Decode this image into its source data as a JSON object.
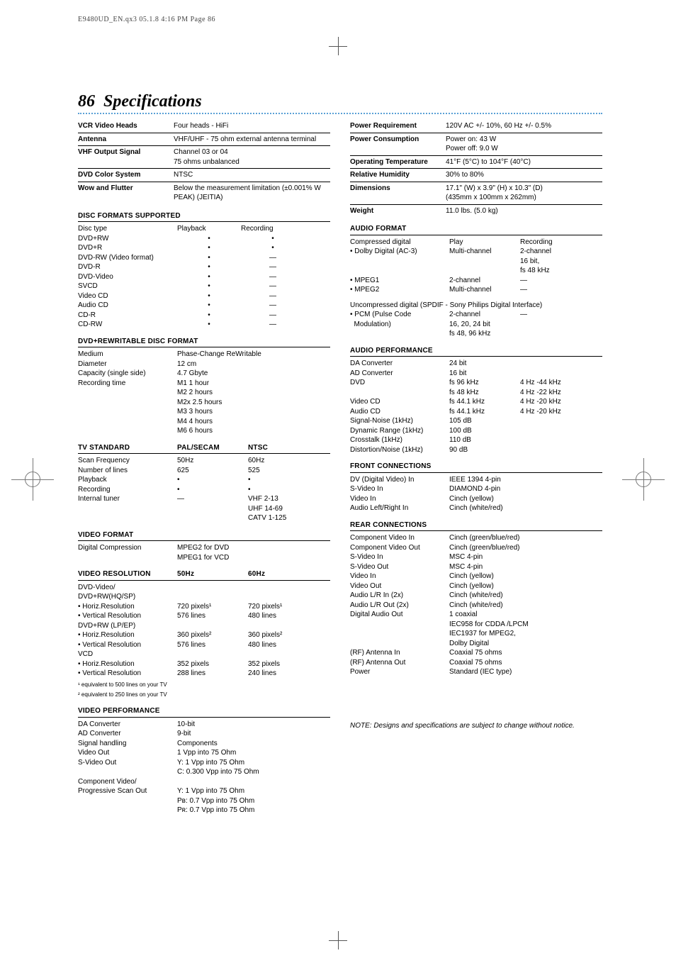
{
  "header_text": "E9480UD_EN.qx3  05.1.8  4:16 PM  Page 86",
  "page_number": "86",
  "page_title": "Specifications",
  "general": [
    {
      "k": "VCR Video Heads",
      "v": "Four heads - HiFi"
    },
    {
      "k": "Antenna",
      "v": "VHF/UHF - 75 ohm external antenna terminal"
    },
    {
      "k": "VHF Output Signal",
      "v": "Channel 03 or 04\n75 ohms unbalanced"
    },
    {
      "k": "DVD Color System",
      "v": "NTSC"
    },
    {
      "k": "Wow and Flutter",
      "v": "Below the measurement limitation (±0.001% W PEAK) (JEITIA)"
    }
  ],
  "right_general": [
    {
      "k": "Power Requirement",
      "v": "120V AC +/- 10%, 60 Hz +/- 0.5%"
    },
    {
      "k": "Power Consumption",
      "v": "Power on: 43 W\nPower off: 9.0 W"
    },
    {
      "k": "Operating Temperature",
      "v": "41°F (5°C) to 104°F (40°C)"
    },
    {
      "k": "Relative Humidity",
      "v": "30% to 80%"
    },
    {
      "k": "Dimensions",
      "v": "17.1\" (W) x 3.9\" (H) x 10.3\" (D)\n(435mm x 100mm x 262mm)"
    },
    {
      "k": "Weight",
      "v": "11.0 lbs. (5.0 kg)"
    }
  ],
  "disc_formats_head": "DISC FORMATS SUPPORTED",
  "disc_cols": [
    "Disc type",
    "Playback",
    "Recording"
  ],
  "disc_rows": [
    [
      "DVD+RW",
      "•",
      "•"
    ],
    [
      "DVD+R",
      "•",
      "•"
    ],
    [
      "DVD-RW (Video format)",
      "•",
      "—"
    ],
    [
      "DVD-R",
      "•",
      "—"
    ],
    [
      "DVD-Video",
      "•",
      "—"
    ],
    [
      "SVCD",
      "•",
      "—"
    ],
    [
      "Video CD",
      "•",
      "—"
    ],
    [
      "Audio CD",
      "•",
      "—"
    ],
    [
      "CD-R",
      "•",
      "—"
    ],
    [
      "CD-RW",
      "•",
      "—"
    ]
  ],
  "rw_head": "DVD+REWRITABLE DISC FORMAT",
  "rw": [
    [
      "Medium",
      "Phase-Change ReWritable"
    ],
    [
      "Diameter",
      "12 cm"
    ],
    [
      "Capacity (single side)",
      "4.7 Gbyte"
    ],
    [
      "Recording time",
      "M1      1 hour"
    ],
    [
      "",
      "M2      2 hours"
    ],
    [
      "",
      "M2x    2.5 hours"
    ],
    [
      "",
      "M3      3 hours"
    ],
    [
      "",
      "M4      4 hours"
    ],
    [
      "",
      "M6      6 hours"
    ]
  ],
  "tv_head": "TV STANDARD",
  "tv_cols": [
    "",
    "PAL/SECAM",
    "NTSC"
  ],
  "tv_rows": [
    [
      "Scan Frequency",
      "50Hz",
      "60Hz"
    ],
    [
      "Number of lines",
      "625",
      "525"
    ],
    [
      "Playback",
      "•",
      "•"
    ],
    [
      "Recording",
      "•",
      "•"
    ],
    [
      "Internal tuner",
      "—",
      "VHF   2-13"
    ],
    [
      "",
      "",
      "UHF   14-69"
    ],
    [
      "",
      "",
      "CATV 1-125"
    ]
  ],
  "vf_head": "VIDEO FORMAT",
  "vf": [
    [
      "Digital Compression",
      "MPEG2 for DVD\nMPEG1 for VCD"
    ]
  ],
  "vr_head": "VIDEO RESOLUTION",
  "vr_cols": [
    "",
    "50Hz",
    "60Hz"
  ],
  "vr_rows": [
    [
      "DVD-Video/",
      "",
      ""
    ],
    [
      "DVD+RW(HQ/SP)",
      "",
      ""
    ],
    [
      "• Horiz.Resolution",
      "720 pixels¹",
      "720 pixels¹"
    ],
    [
      "• Vertical Resolution",
      "576 lines",
      "480 lines"
    ],
    [
      "DVD+RW (LP/EP)",
      "",
      ""
    ],
    [
      "• Horiz.Resolution",
      "360 pixels²",
      "360 pixels²"
    ],
    [
      "• Vertical Resolution",
      "576 lines",
      "480 lines"
    ],
    [
      "VCD",
      "",
      ""
    ],
    [
      "• Horiz.Resolution",
      "352 pixels",
      "352 pixels"
    ],
    [
      "• Vertical Resolution",
      "288 lines",
      "240 lines"
    ]
  ],
  "vr_foot1": "¹ equivalent to 500 lines on your TV",
  "vr_foot2": "² equivalent to 250 lines on your TV",
  "vp_head": "VIDEO PERFORMANCE",
  "vp": [
    [
      "DA Converter",
      "10-bit"
    ],
    [
      "AD Converter",
      "9-bit"
    ],
    [
      "Signal handling",
      "Components"
    ],
    [
      "Video Out",
      "1 Vpp into 75 Ohm"
    ],
    [
      "S-Video Out",
      "Y: 1 Vpp into 75 Ohm"
    ],
    [
      "",
      "C: 0.300 Vpp into 75 Ohm"
    ],
    [
      "Component Video/",
      ""
    ],
    [
      "Progressive Scan Out",
      "Y: 1 Vpp into 75 Ohm"
    ],
    [
      "",
      "Pʙ: 0.7 Vpp into 75 Ohm"
    ],
    [
      "",
      "Pʀ: 0.7 Vpp into 75 Ohm"
    ]
  ],
  "af_head": "AUDIO FORMAT",
  "af_c1": "Compressed digital",
  "af_play": "Play",
  "af_rec": "Recording",
  "af_rows": [
    [
      "• Dolby Digital (AC-3)",
      "Multi-channel",
      "2-channel\n16 bit,\nfs 48 kHz"
    ],
    [
      "• MPEG1",
      "2-channel",
      "—"
    ],
    [
      "• MPEG2",
      "Multi-channel",
      "—"
    ]
  ],
  "af_unc": "Uncompressed digital (SPDIF - Sony Philips Digital Interface)",
  "af_pcm": [
    "• PCM (Pulse Code\n  Modulation)",
    "2-channel\n16, 20, 24 bit\nfs 48, 96 kHz",
    "—"
  ],
  "ap_head": "AUDIO PERFORMANCE",
  "ap": [
    [
      "DA Converter",
      "24 bit",
      ""
    ],
    [
      "AD Converter",
      "16 bit",
      ""
    ],
    [
      "DVD",
      "fs 96 kHz",
      "4 Hz -44 kHz"
    ],
    [
      "",
      "fs 48 kHz",
      "4 Hz -22 kHz"
    ],
    [
      "Video CD",
      "fs 44.1 kHz",
      "4 Hz -20 kHz"
    ],
    [
      "Audio CD",
      "fs 44.1 kHz",
      "4 Hz -20 kHz"
    ],
    [
      "Signal-Noise (1kHz)",
      "105 dB",
      ""
    ],
    [
      "Dynamic Range (1kHz)",
      "100 dB",
      ""
    ],
    [
      "Crosstalk (1kHz)",
      "110 dB",
      ""
    ],
    [
      "Distortion/Noise (1kHz)",
      "90 dB",
      ""
    ]
  ],
  "fc_head": "FRONT CONNECTIONS",
  "fc": [
    [
      "DV (Digital Video) In",
      "IEEE 1394 4-pin"
    ],
    [
      "S-Video In",
      "DIAMOND 4-pin"
    ],
    [
      "Video In",
      "Cinch (yellow)"
    ],
    [
      "Audio Left/Right In",
      "Cinch (white/red)"
    ]
  ],
  "rc_head": "REAR CONNECTIONS",
  "rc": [
    [
      "Component Video In",
      "Cinch (green/blue/red)"
    ],
    [
      "Component Video Out",
      "Cinch (green/blue/red)"
    ],
    [
      "S-Video In",
      "MSC 4-pin"
    ],
    [
      "S-Video Out",
      "MSC 4-pin"
    ],
    [
      "Video In",
      "Cinch (yellow)"
    ],
    [
      "Video Out",
      "Cinch (yellow)"
    ],
    [
      "Audio L/R In (2x)",
      "Cinch (white/red)"
    ],
    [
      "Audio L/R Out (2x)",
      "Cinch (white/red)"
    ],
    [
      "Digital Audio Out",
      "1 coaxial"
    ],
    [
      "",
      "IEC958 for CDDA /LPCM"
    ],
    [
      "",
      "IEC1937 for MPEG2,"
    ],
    [
      "",
      "Dolby Digital"
    ],
    [
      "(RF) Antenna In",
      "Coaxial 75 ohms"
    ],
    [
      "(RF) Antenna Out",
      "Coaxial 75 ohms"
    ],
    [
      "Power",
      "Standard (IEC type)"
    ]
  ],
  "note": "NOTE: Designs and specifications are subject to change without notice."
}
